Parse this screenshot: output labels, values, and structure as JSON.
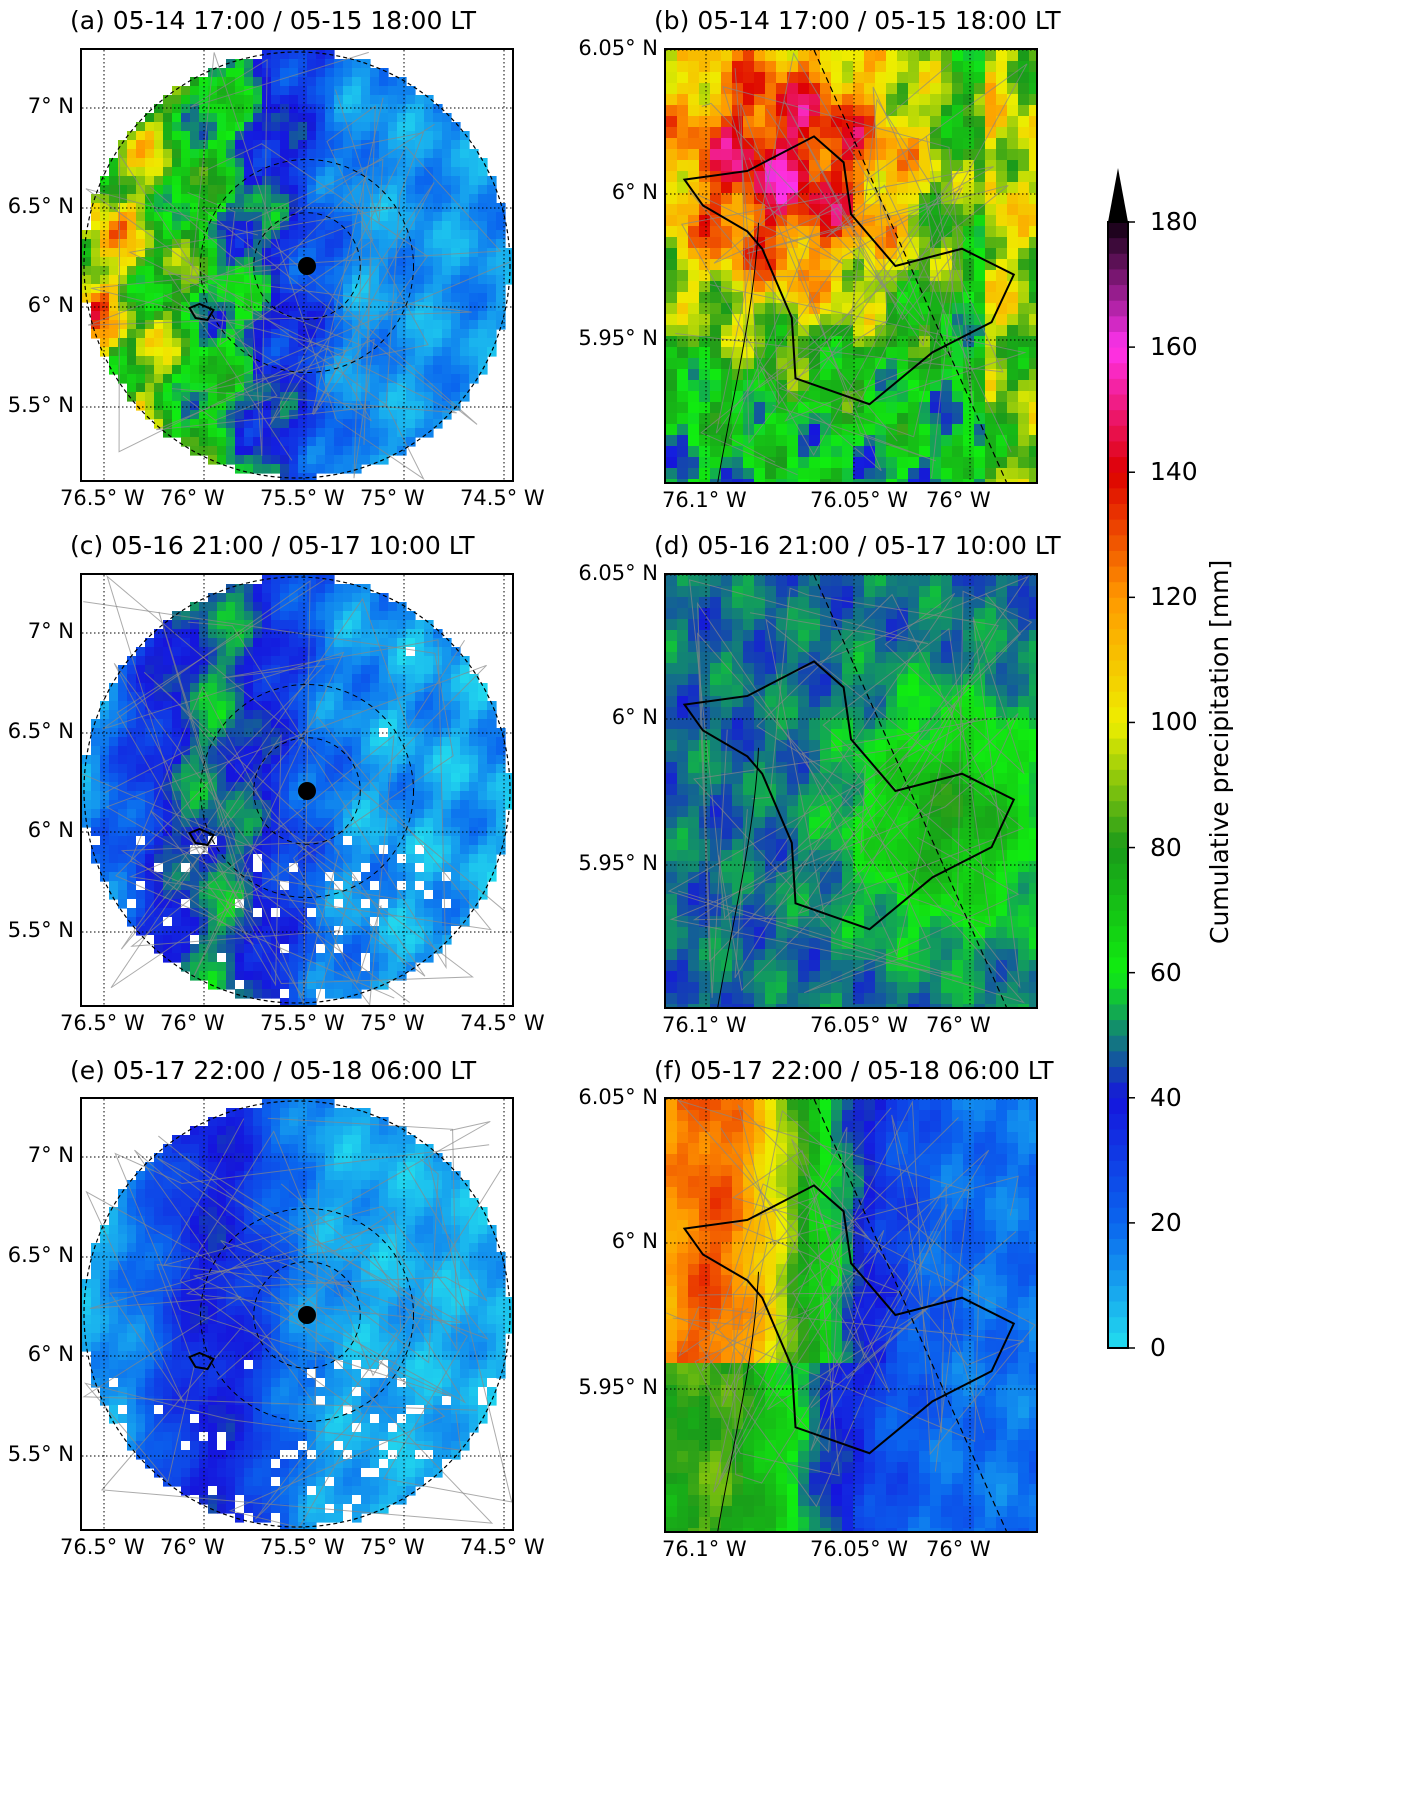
{
  "figure": {
    "panels": [
      {
        "id": "a",
        "title": "(a) 05-14 17:00 / 05-15 18:00 LT",
        "kind": "overview",
        "regime": "heavy-west"
      },
      {
        "id": "b",
        "title": "(b) 05-14 17:00 / 05-15 18:00 LT",
        "kind": "zoom",
        "regime": "heavy-west"
      },
      {
        "id": "c",
        "title": "(c) 05-16 21:00 / 05-17 10:00 LT",
        "kind": "overview",
        "regime": "moderate"
      },
      {
        "id": "d",
        "title": "(d) 05-16 21:00 / 05-17 10:00 LT",
        "kind": "zoom",
        "regime": "moderate"
      },
      {
        "id": "e",
        "title": "(e) 05-17 22:00 / 05-18 06:00 LT",
        "kind": "overview",
        "regime": "light"
      },
      {
        "id": "f",
        "title": "(f) 05-17 22:00 / 05-18 06:00 LT",
        "kind": "zoom",
        "regime": "light"
      }
    ],
    "overview_axes": {
      "x_ticks": [
        "76.5° W",
        "76° W",
        "75.5° W",
        "75° W",
        "74.5° W"
      ],
      "y_ticks": [
        "7° N",
        "6.5° N",
        "6° N",
        "5.5° N"
      ],
      "xlim": [
        -76.6,
        -74.5
      ],
      "ylim": [
        5.08,
        7.27
      ],
      "radar_site": {
        "lon": -75.53,
        "lat": 6.19
      }
    },
    "zoom_axes": {
      "x_ticks": [
        "76.1° W",
        "76.05° W",
        "76° W"
      ],
      "y_ticks": [
        "6.05° N",
        "6° N",
        "5.95° N"
      ],
      "xlim": [
        -76.1,
        -75.978
      ],
      "ylim": [
        5.91,
        6.05
      ]
    },
    "colorbar": {
      "label": "Cumulative precipitation [mm]",
      "ticks": [
        "0",
        "20",
        "40",
        "60",
        "80",
        "100",
        "120",
        "140",
        "160",
        "180"
      ],
      "range": [
        0,
        180
      ],
      "extend": "max",
      "colors": [
        "#22ddee",
        "#0a66ee",
        "#1515dd",
        "#10ee10",
        "#1a9a1a",
        "#eeee00",
        "#ff9900",
        "#dd0000",
        "#ff33ee",
        "#100010"
      ]
    }
  }
}
